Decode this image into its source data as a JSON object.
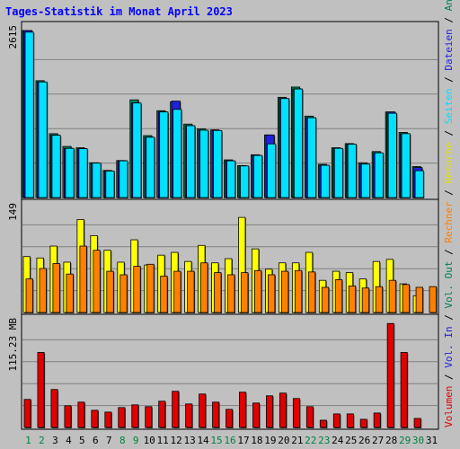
{
  "chart_data": {
    "type": "bar",
    "title": "Tages-Statistik im Monat April 2023",
    "categories": [
      "1",
      "2",
      "3",
      "4",
      "5",
      "6",
      "7",
      "8",
      "9",
      "10",
      "11",
      "12",
      "13",
      "14",
      "15",
      "16",
      "17",
      "18",
      "19",
      "20",
      "21",
      "22",
      "23",
      "24",
      "25",
      "26",
      "27",
      "28",
      "29",
      "30",
      "31"
    ],
    "weekend_days": [
      "1",
      "2",
      "8",
      "9",
      "15",
      "16",
      "22",
      "23",
      "29",
      "30"
    ],
    "colors": {
      "background": "#c0c0c0",
      "title": "#0000ff",
      "weekday_label": "#000000",
      "weekend_label": "#008040",
      "grid": "#808080",
      "Anfragen": "#00805c",
      "Dateien": "#2020e0",
      "Seiten": "#00e0ff",
      "Besuche": "#ffff00",
      "Rechner": "#ff8000",
      "Volumen": "#e00000"
    },
    "panels": [
      {
        "ylabel": "2615",
        "ymax": 2615,
        "series": [
          {
            "name": "Anfragen",
            "values": [
              2615,
              1830,
              1000,
              800,
              780,
              545,
              425,
              580,
              1530,
              970,
              1360,
              1500,
              1150,
              1075,
              1060,
              590,
              500,
              670,
              980,
              1570,
              1730,
              1275,
              520,
              780,
              845,
              545,
              720,
              1340,
              1020,
              485,
              null
            ]
          },
          {
            "name": "Dateien",
            "values": [
              2615,
              1810,
              975,
              770,
              765,
              540,
              415,
              575,
              1480,
              945,
              1340,
              1510,
              1125,
              1055,
              1050,
              575,
              495,
              660,
              980,
              1550,
              1700,
              1250,
              505,
              770,
              835,
              525,
              700,
              1340,
              1000,
              470,
              null
            ]
          },
          {
            "name": "Seiten",
            "values": [
              2590,
              1810,
              975,
              770,
              765,
              540,
              415,
              575,
              1480,
              945,
              1340,
              1380,
              1125,
              1055,
              1050,
              575,
              495,
              660,
              840,
              1550,
              1700,
              1250,
              505,
              770,
              835,
              525,
              700,
              1320,
              1000,
              420,
              null
            ]
          }
        ]
      },
      {
        "ylabel": "149",
        "ymax": 149,
        "series": [
          {
            "name": "Besuche",
            "values": [
              80,
              78,
              95,
              72,
              133,
              110,
              89,
              72,
              104,
              68,
              82,
              86,
              73,
              96,
              71,
              77,
              136,
              91,
              62,
              71,
              71,
              86,
              46,
              59,
              57,
              48,
              73,
              76,
              41,
              24,
              null
            ]
          },
          {
            "name": "Rechner",
            "values": [
              48,
              63,
              70,
              55,
              95,
              89,
              59,
              54,
              66,
              69,
              52,
              59,
              59,
              71,
              57,
              54,
              57,
              60,
              54,
              59,
              60,
              58,
              36,
              47,
              38,
              35,
              37,
              46,
              40,
              36,
              37
            ]
          }
        ]
      },
      {
        "ylabel": "115.23 MB",
        "ymax": 115.23,
        "series": [
          {
            "name": "Volumen",
            "values": [
              31,
              83,
              42,
              24,
              28,
              19,
              17,
              22,
              25,
              23,
              29,
              40,
              26,
              37,
              28,
              20,
              39,
              27,
              35,
              38,
              32,
              23,
              8,
              15,
              15,
              9,
              16,
              115,
              83,
              10,
              null
            ]
          }
        ]
      }
    ],
    "right_legend": [
      {
        "text": "Volumen",
        "color": "#e00000"
      },
      {
        "text": " / ",
        "color": "#000000"
      },
      {
        "text": "Vol. In",
        "color": "#2020e0"
      },
      {
        "text": " / ",
        "color": "#000000"
      },
      {
        "text": "Vol. Out",
        "color": "#00805c"
      },
      {
        "text": " / ",
        "color": "#000000"
      },
      {
        "text": "Rechner",
        "color": "#ff8000"
      },
      {
        "text": " / ",
        "color": "#000000"
      },
      {
        "text": "Besuche",
        "color": "#e0e000"
      },
      {
        "text": " / ",
        "color": "#000000"
      },
      {
        "text": "Seiten",
        "color": "#00e0ff"
      },
      {
        "text": " / ",
        "color": "#000000"
      },
      {
        "text": "Dateien",
        "color": "#2020e0"
      },
      {
        "text": " / ",
        "color": "#000000"
      },
      {
        "text": "Anfragen",
        "color": "#00805c"
      }
    ]
  }
}
